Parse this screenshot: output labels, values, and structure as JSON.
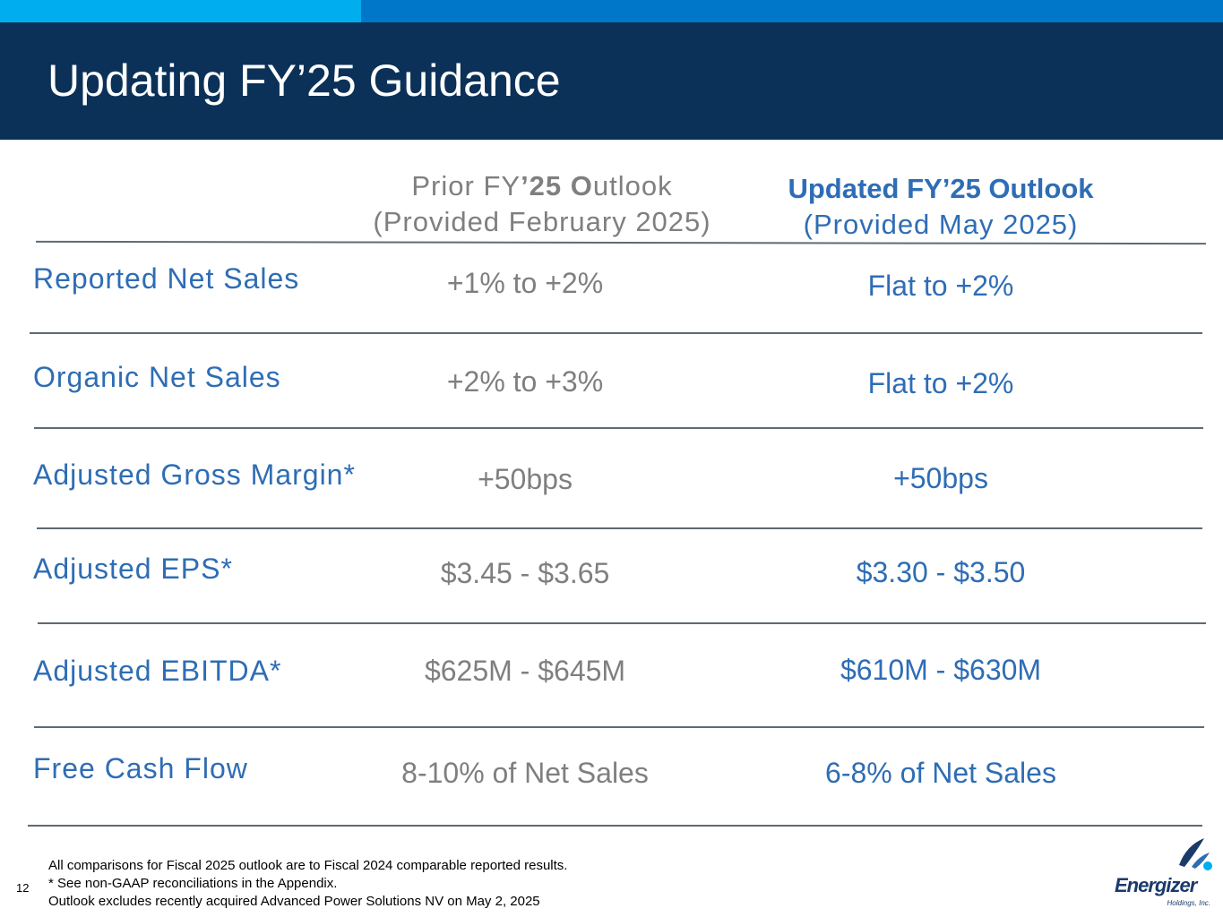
{
  "slide": {
    "title": "Updating FY’25 Guidance",
    "page_number": "12"
  },
  "columns": {
    "prior": {
      "line1_a": "Prior FY",
      "line1_b": "’25 O",
      "line1_c": "utlook",
      "line2": "(Provided February 2025)"
    },
    "updated": {
      "line1": "Updated FY’25 Outlook",
      "line2": "(Provided May 2025)"
    }
  },
  "rows": [
    {
      "label": "Reported Net Sales",
      "prior": "+1% to +2%",
      "updated": "Flat to +2%"
    },
    {
      "label": "Organic Net Sales",
      "prior": "+2% to +3%",
      "updated": "Flat to +2%"
    },
    {
      "label": "Adjusted Gross Margin*",
      "prior": "+50bps",
      "updated": "+50bps"
    },
    {
      "label": "Adjusted EPS*",
      "prior": "$3.45 - $3.65",
      "updated": "$3.30 - $3.50"
    },
    {
      "label": "Adjusted EBITDA*",
      "prior": "$625M - $645M",
      "updated": "$610M - $630M"
    },
    {
      "label": "Free Cash Flow",
      "prior": "8-10% of Net Sales",
      "updated": "6-8% of Net Sales"
    }
  ],
  "footnotes": [
    "All comparisons for Fiscal 2025 outlook are to Fiscal 2024 comparable reported results.",
    "* See non-GAAP reconciliations in the Appendix.",
    "Outlook excludes recently acquired Advanced Power Solutions NV on May 2, 2025"
  ],
  "logo": {
    "word": "Energizer",
    "sub": "Holdings, Inc."
  },
  "colors": {
    "header_bg": "#0b3158",
    "strip": "#0077c8",
    "strip_accent": "#00aeef",
    "accent_blue": "#2e6db5",
    "gray_text": "#7f7f7f"
  }
}
